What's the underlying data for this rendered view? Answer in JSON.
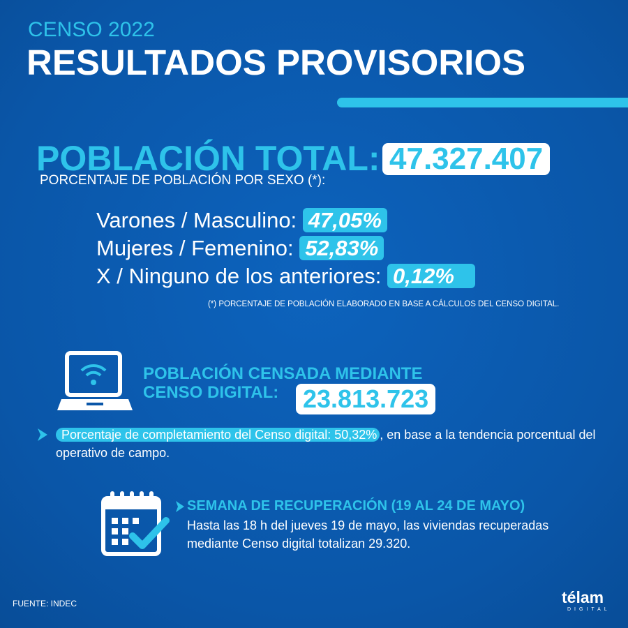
{
  "header": {
    "kicker": "CENSO 2022",
    "title": "RESULTADOS PROVISORIOS"
  },
  "total": {
    "label": "POBLACIÓN TOTAL:",
    "value": "47.327.407"
  },
  "sex": {
    "heading": "PORCENTAJE DE POBLACIÓN POR SEXO (*):",
    "rows": [
      {
        "label": "Varones / Masculino:",
        "value": "47,05%"
      },
      {
        "label": "Mujeres / Femenino:",
        "value": "52,83%"
      },
      {
        "label": "X / Ninguno de los anteriores:",
        "value": "0,12%"
      }
    ],
    "note": "(*) PORCENTAJE DE POBLACIÓN ELABORADO EN BASE A CÁLCULOS DEL CENSO DIGITAL."
  },
  "digital": {
    "label_lines": [
      "POBLACIÓN CENSADA MEDIANTE",
      "CENSO DIGITAL:"
    ],
    "value": "23.813.723",
    "highlight": "Porcentaje de completamiento del Censo digital: 50,32%",
    "rest": ", en base a la tendencia porcentual del operativo de campo."
  },
  "recovery": {
    "heading": "SEMANA DE RECUPERACIÓN (19 AL 24 DE MAYO)",
    "text": "Hasta las 18 h del jueves 19 de mayo, las viviendas recuperadas mediante Censo digital totalizan 29.320."
  },
  "footer": {
    "source": "FUENTE: INDEC",
    "logo": "télam",
    "logo_sub": "DIGITAL"
  }
}
